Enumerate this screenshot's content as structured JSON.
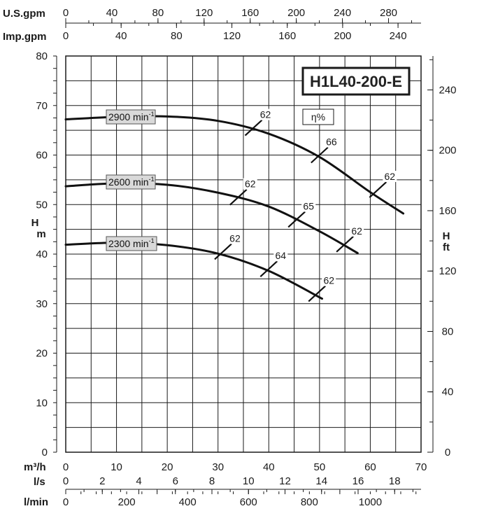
{
  "chart_data": {
    "type": "line",
    "title": "H1L40-200-E",
    "efficiency_label": "η%",
    "axes": {
      "top1": {
        "name": "U.S.gpm",
        "ticks": [
          "0",
          "40",
          "80",
          "120",
          "160",
          "200",
          "240",
          "280"
        ],
        "values": [
          0,
          40,
          80,
          120,
          160,
          200,
          240,
          280
        ]
      },
      "top2": {
        "name": "Imp.gpm",
        "ticks": [
          "0",
          "40",
          "80",
          "120",
          "160",
          "200",
          "240"
        ],
        "values": [
          0,
          40,
          80,
          120,
          160,
          200,
          240
        ]
      },
      "left": {
        "name_line1": "H",
        "name_line2": "m",
        "ticks": [
          "0",
          "10",
          "20",
          "30",
          "40",
          "50",
          "60",
          "70",
          "80"
        ],
        "values": [
          0,
          10,
          20,
          30,
          40,
          50,
          60,
          70,
          80
        ],
        "range": [
          0,
          80
        ]
      },
      "right": {
        "name_line1": "H",
        "name_line2": "ft",
        "ticks": [
          "0",
          "40",
          "80",
          "120",
          "160",
          "200",
          "240"
        ],
        "values": [
          0,
          40,
          80,
          120,
          160,
          200,
          240
        ]
      },
      "bottom1": {
        "name": "m³/h",
        "ticks": [
          "0",
          "10",
          "20",
          "30",
          "40",
          "50",
          "60",
          "70"
        ],
        "values": [
          0,
          10,
          20,
          30,
          40,
          50,
          60,
          70
        ],
        "range": [
          0,
          70
        ]
      },
      "bottom2": {
        "name": "l/s",
        "ticks": [
          "0",
          "2",
          "4",
          "6",
          "8",
          "10",
          "12",
          "14",
          "16",
          "18"
        ],
        "values": [
          0,
          2,
          4,
          6,
          8,
          10,
          12,
          14,
          16,
          18
        ]
      },
      "bottom3": {
        "name": "l/min",
        "ticks": [
          "0",
          "200",
          "400",
          "600",
          "800",
          "1000"
        ],
        "values": [
          0,
          200,
          400,
          600,
          800,
          1000
        ]
      }
    },
    "grid": true,
    "series": [
      {
        "name": "2900 min⁻¹",
        "label_text": "2900 min",
        "label_sup": "-1",
        "x": [
          0,
          10,
          20,
          30,
          40,
          50,
          60,
          66.5
        ],
        "y": [
          67.2,
          67.7,
          67.8,
          66.9,
          64.3,
          59.6,
          52.5,
          48.2
        ]
      },
      {
        "name": "2600 min⁻¹",
        "label_text": "2600 min",
        "label_sup": "-1",
        "x": [
          0,
          10,
          20,
          30,
          40,
          50,
          57.5
        ],
        "y": [
          53.7,
          54.3,
          54.0,
          52.4,
          49.6,
          44.6,
          40.2
        ]
      },
      {
        "name": "2300 min⁻¹",
        "label_text": "2300 min",
        "label_sup": "-1",
        "x": [
          0,
          10,
          20,
          30,
          40,
          50.5
        ],
        "y": [
          41.9,
          42.3,
          41.8,
          40.1,
          36.6,
          31.0
        ]
      }
    ],
    "efficiency_marks": [
      {
        "label": "62",
        "x": 37.0,
        "y": 65.5
      },
      {
        "label": "66",
        "x": 50.0,
        "y": 60.0
      },
      {
        "label": "62",
        "x": 61.5,
        "y": 53.0
      },
      {
        "label": "62",
        "x": 34.0,
        "y": 51.5
      },
      {
        "label": "65",
        "x": 45.5,
        "y": 47.0
      },
      {
        "label": "62",
        "x": 55.0,
        "y": 42.0
      },
      {
        "label": "62",
        "x": 31.0,
        "y": 40.5
      },
      {
        "label": "64",
        "x": 40.0,
        "y": 37.0
      },
      {
        "label": "62",
        "x": 49.5,
        "y": 32.0
      }
    ]
  }
}
